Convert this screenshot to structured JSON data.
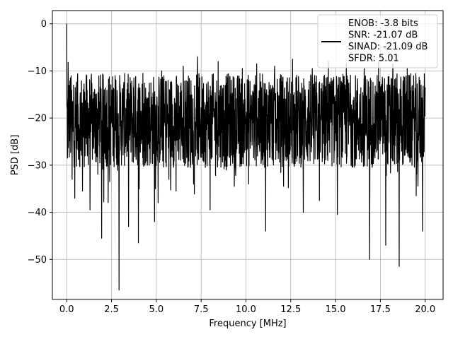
{
  "chart_data": {
    "type": "line",
    "title": "",
    "xlabel": "Frequency [MHz]",
    "ylabel": "PSD [dB]",
    "xlim": [
      -0.8,
      21.0
    ],
    "ylim": [
      -58.5,
      2.8
    ],
    "xticks": [
      0.0,
      2.5,
      5.0,
      7.5,
      10.0,
      12.5,
      15.0,
      17.5,
      20.0
    ],
    "xtick_labels": [
      "0.0",
      "2.5",
      "5.0",
      "7.5",
      "10.0",
      "12.5",
      "15.0",
      "17.5",
      "20.0"
    ],
    "yticks": [
      0,
      -10,
      -20,
      -30,
      -40,
      -50
    ],
    "ytick_labels": [
      "0",
      "−10",
      "−20",
      "−30",
      "−40",
      "−50"
    ],
    "grid": true,
    "legend_position": "top-right",
    "series": [
      {
        "color": "#000000",
        "legend_lines": [
          "ENOB: -3.8 bits",
          "SNR: -21.07 dB",
          "SINAD: -21.09 dB",
          "SFDR: 5.01"
        ],
        "noise_floor_mean_db": -20.5,
        "x": [
          0.0,
          0.04,
          0.08,
          0.12,
          0.2,
          0.3,
          0.38,
          0.45,
          0.6,
          0.72,
          0.88,
          1.0,
          1.15,
          1.3,
          1.6,
          1.95,
          2.1,
          2.4,
          2.7,
          2.92,
          3.2,
          3.45,
          3.75,
          4.0,
          4.25,
          4.5,
          4.9,
          5.3,
          5.7,
          6.1,
          6.5,
          6.9,
          7.3,
          7.6,
          8.0,
          8.45,
          8.9,
          9.35,
          9.8,
          10.15,
          10.6,
          11.1,
          11.6,
          12.1,
          12.6,
          13.2,
          13.7,
          14.1,
          14.6,
          15.1,
          15.6,
          16.1,
          16.6,
          16.9,
          17.4,
          17.8,
          18.2,
          18.55,
          19.0,
          19.5,
          19.85,
          20.0
        ],
        "y": [
          0.0,
          -28.5,
          -8.2,
          -22.0,
          -11.5,
          -33.0,
          -13.0,
          -37.0,
          -12.0,
          -30.0,
          -35.5,
          -14.5,
          -28.0,
          -39.5,
          -15.0,
          -45.5,
          -14.0,
          -33.5,
          -11.0,
          -56.5,
          -12.5,
          -43.0,
          -11.5,
          -46.5,
          -10.5,
          -30.0,
          -42.0,
          -10.0,
          -33.0,
          -35.5,
          -9.0,
          -30.5,
          -7.0,
          -29.0,
          -39.5,
          -8.0,
          -31.0,
          -34.5,
          -9.5,
          -34.0,
          -8.5,
          -44.0,
          -9.0,
          -34.5,
          -7.5,
          -40.0,
          -9.5,
          -37.5,
          -8.0,
          -40.5,
          -8.5,
          -30.0,
          -9.5,
          -50.0,
          -8.0,
          -47.0,
          -8.5,
          -51.5,
          -9.5,
          -36.5,
          -44.0,
          -13.5
        ]
      }
    ]
  }
}
